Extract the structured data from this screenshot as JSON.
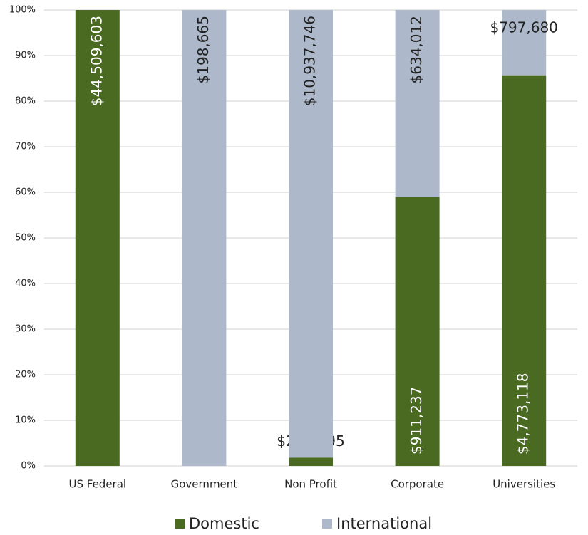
{
  "chart_data": {
    "type": "bar",
    "stacking": "percent",
    "categories": [
      "US Federal",
      "Government",
      "Non Profit",
      "Corporate",
      "Universities"
    ],
    "series": [
      {
        "name": "Domestic",
        "color": "#4a6a22",
        "values": [
          44509603,
          null,
          203295,
          911237,
          4773118
        ],
        "value_labels": [
          "$44,509,603",
          null,
          "$203,295",
          "$911,237",
          "$4,773,118"
        ]
      },
      {
        "name": "International",
        "color": "#adb9ca",
        "values": [
          null,
          198665,
          10937746,
          634012,
          797680
        ],
        "value_labels": [
          null,
          "$198,665",
          "$10,937,746",
          "$634,012",
          "$797,680"
        ]
      }
    ],
    "ylim": [
      0,
      100
    ],
    "yticks": [
      {
        "value": 0,
        "label": "0%"
      },
      {
        "value": 10,
        "label": "10%"
      },
      {
        "value": 20,
        "label": "20%"
      },
      {
        "value": 30,
        "label": "30%"
      },
      {
        "value": 40,
        "label": "40%"
      },
      {
        "value": 50,
        "label": "50%"
      },
      {
        "value": 60,
        "label": "60%"
      },
      {
        "value": 70,
        "label": "70%"
      },
      {
        "value": 80,
        "label": "80%"
      },
      {
        "value": 90,
        "label": "90%"
      },
      {
        "value": 100,
        "label": "100%"
      }
    ],
    "grid": true,
    "legend": "bottom"
  }
}
